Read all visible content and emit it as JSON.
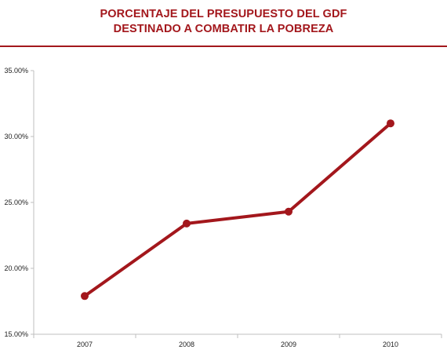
{
  "chart_data": {
    "type": "line",
    "title_lines": [
      "PORCENTAJE DEL PRESUPUESTO DEL GDF",
      "DESTINADO A COMBATIR LA POBREZA"
    ],
    "categories": [
      "2007",
      "2008",
      "2009",
      "2010"
    ],
    "series": [
      {
        "values": [
          17.9,
          23.4,
          24.3,
          31.0
        ]
      }
    ],
    "ylim": [
      15,
      35
    ],
    "yticks": [
      "15.00%",
      "20.00%",
      "25.00%",
      "30.00%",
      "35.00%"
    ],
    "ytick_values": [
      15,
      20,
      25,
      30,
      35
    ],
    "grid": false,
    "legend": "none",
    "colors": {
      "title": "#a3171c",
      "line": "#a3171c",
      "axis": "#bfbfbf"
    }
  }
}
